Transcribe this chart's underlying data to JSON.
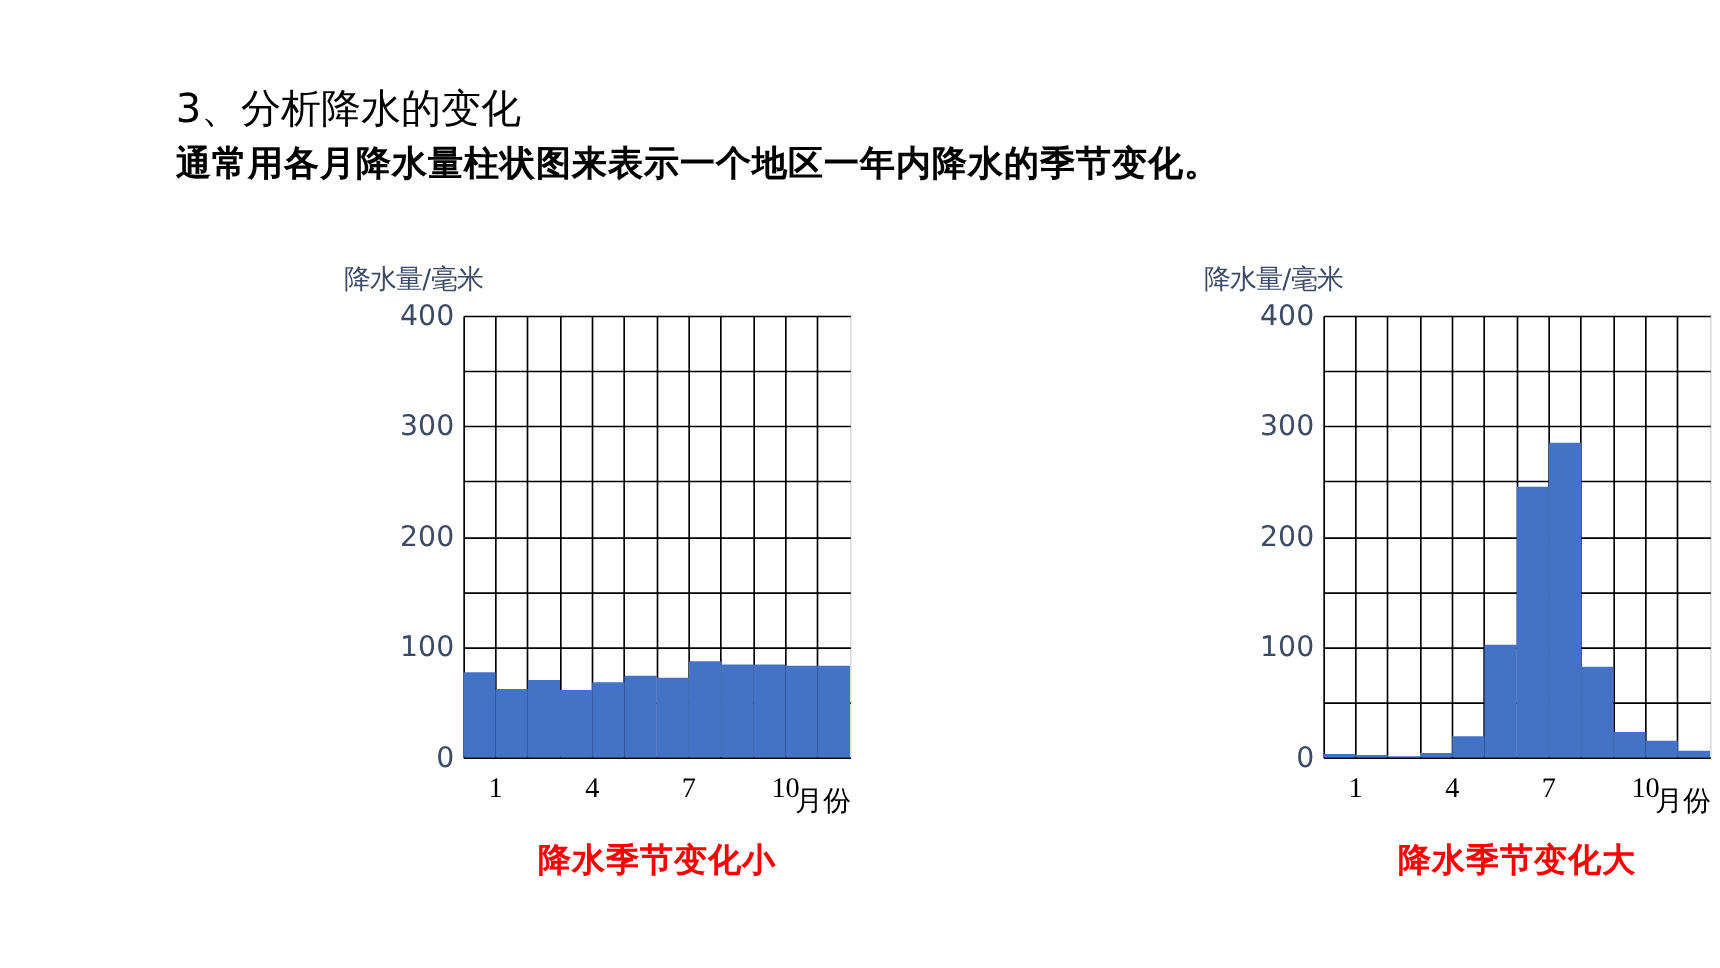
{
  "chart_data": [
    {
      "type": "bar",
      "title": "3、分析降水的变化",
      "subtitle": "通常用各月降水量柱状图来表示一个地区一年内降水的季节变化。",
      "ylabel": "降水量/毫米",
      "xlabel": "月份",
      "categories": [
        "1",
        null,
        null,
        "4",
        null,
        null,
        "7",
        null,
        null,
        "10",
        null,
        null
      ],
      "values": [
        77,
        62,
        70,
        61,
        68,
        74,
        72,
        87,
        84,
        84,
        83,
        83
      ],
      "color": "#4472c4",
      "ylim": [
        0,
        400
      ],
      "yticks": [
        0,
        {
          "value": 50,
          "label": null
        },
        100,
        {
          "value": 150,
          "label": null
        },
        200,
        {
          "value": 250,
          "label": null
        },
        300,
        {
          "value": 350,
          "label": null
        },
        400
      ],
      "grid": true,
      "annotations": [
        "降水季节变化小"
      ]
    },
    {
      "type": "bar",
      "ylabel": "降水量/毫米",
      "xlabel": "月份",
      "categories": [
        "1",
        null,
        null,
        "4",
        null,
        null,
        "7",
        null,
        null,
        "10",
        null,
        null
      ],
      "values": [
        3,
        2,
        1,
        4,
        19,
        102,
        245,
        285,
        82,
        23,
        15,
        6
      ],
      "color": "#4472c4",
      "ylim": [
        0,
        400
      ],
      "yticks": [
        0,
        {
          "value": 50,
          "label": null
        },
        100,
        {
          "value": 150,
          "label": null
        },
        200,
        {
          "value": 250,
          "label": null
        },
        300,
        {
          "value": 350,
          "label": null
        },
        400
      ],
      "grid": true,
      "annotations": [
        "降水季节变化大"
      ]
    }
  ]
}
